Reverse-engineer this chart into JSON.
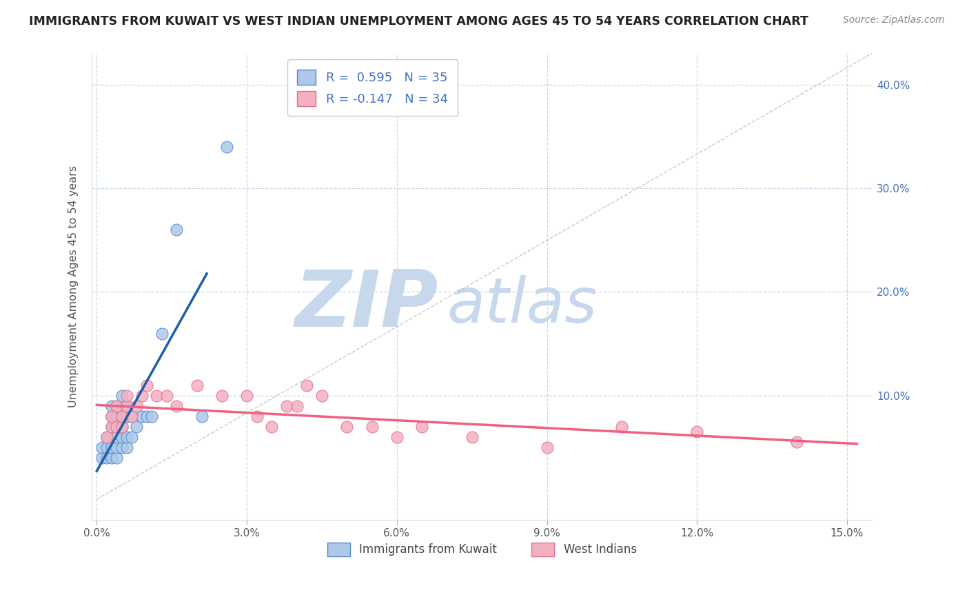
{
  "title": "IMMIGRANTS FROM KUWAIT VS WEST INDIAN UNEMPLOYMENT AMONG AGES 45 TO 54 YEARS CORRELATION CHART",
  "source": "Source: ZipAtlas.com",
  "ylabel": "Unemployment Among Ages 45 to 54 years",
  "xlim": [
    -0.001,
    0.155
  ],
  "ylim": [
    -0.02,
    0.43
  ],
  "xticks": [
    0.0,
    0.03,
    0.06,
    0.09,
    0.12,
    0.15
  ],
  "xticklabels": [
    "0.0%",
    "3.0%",
    "6.0%",
    "9.0%",
    "12.0%",
    "15.0%"
  ],
  "yticks": [
    0.1,
    0.2,
    0.3,
    0.4
  ],
  "yticklabels": [
    "10.0%",
    "20.0%",
    "30.0%",
    "40.0%"
  ],
  "R_kuwait": 0.595,
  "N_kuwait": 35,
  "R_westindian": -0.147,
  "N_westindian": 34,
  "kuwait_face_color": "#adc8e8",
  "kuwait_edge_color": "#5588cc",
  "westindian_face_color": "#f5b0c0",
  "westindian_edge_color": "#e07090",
  "kuwait_line_color": "#1a5fa8",
  "westindian_line_color": "#f06080",
  "background_color": "#ffffff",
  "grid_color": "#c8d8e8",
  "yaxis_label_color": "#4472c4",
  "kuwait_x": [
    0.001,
    0.001,
    0.002,
    0.002,
    0.002,
    0.003,
    0.003,
    0.003,
    0.003,
    0.003,
    0.004,
    0.004,
    0.004,
    0.004,
    0.004,
    0.004,
    0.005,
    0.005,
    0.005,
    0.005,
    0.005,
    0.006,
    0.006,
    0.006,
    0.006,
    0.007,
    0.007,
    0.008,
    0.009,
    0.01,
    0.011,
    0.013,
    0.016,
    0.021,
    0.026
  ],
  "kuwait_y": [
    0.04,
    0.05,
    0.04,
    0.05,
    0.06,
    0.04,
    0.05,
    0.07,
    0.08,
    0.09,
    0.04,
    0.05,
    0.06,
    0.07,
    0.08,
    0.09,
    0.05,
    0.06,
    0.07,
    0.08,
    0.1,
    0.05,
    0.06,
    0.08,
    0.09,
    0.06,
    0.08,
    0.07,
    0.08,
    0.08,
    0.08,
    0.16,
    0.26,
    0.08,
    0.34
  ],
  "westindian_x": [
    0.002,
    0.003,
    0.003,
    0.004,
    0.004,
    0.005,
    0.005,
    0.006,
    0.006,
    0.007,
    0.008,
    0.009,
    0.01,
    0.012,
    0.014,
    0.016,
    0.02,
    0.025,
    0.03,
    0.032,
    0.035,
    0.038,
    0.04,
    0.042,
    0.045,
    0.05,
    0.055,
    0.06,
    0.065,
    0.075,
    0.09,
    0.105,
    0.12,
    0.14
  ],
  "westindian_y": [
    0.06,
    0.07,
    0.08,
    0.07,
    0.09,
    0.07,
    0.08,
    0.09,
    0.1,
    0.08,
    0.09,
    0.1,
    0.11,
    0.1,
    0.1,
    0.09,
    0.11,
    0.1,
    0.1,
    0.08,
    0.07,
    0.09,
    0.09,
    0.11,
    0.1,
    0.07,
    0.07,
    0.06,
    0.07,
    0.06,
    0.05,
    0.07,
    0.065,
    0.055
  ]
}
